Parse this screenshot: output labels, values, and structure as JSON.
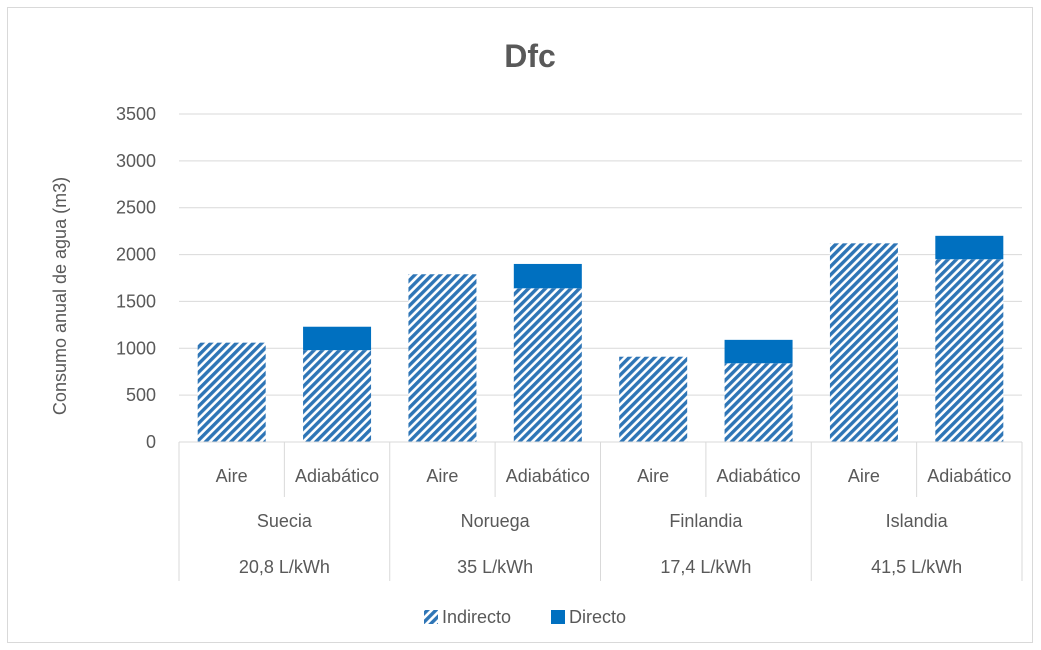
{
  "chart_data": {
    "type": "bar",
    "stacked": true,
    "title": "Dfc",
    "xlabel": "",
    "ylabel": "Consumo anual de agua (m3)",
    "ylim": [
      0,
      3500
    ],
    "yticks": [
      0,
      500,
      1000,
      1500,
      2000,
      2500,
      3000,
      3500
    ],
    "grid": true,
    "legend_position": "bottom",
    "colors": {
      "indirecto": "#2e75b6",
      "directo": "#0070c0",
      "grid": "#d9d9d9",
      "text": "#595959"
    },
    "groups": [
      {
        "country": "Suecia",
        "rate": "20,8 L/kWh",
        "categories": [
          "Aire",
          "Adiabático"
        ]
      },
      {
        "country": "Noruega",
        "rate": "35 L/kWh",
        "categories": [
          "Aire",
          "Adiabático"
        ]
      },
      {
        "country": "Finlandia",
        "rate": "17,4 L/kWh",
        "categories": [
          "Aire",
          "Adiabático"
        ]
      },
      {
        "country": "Islandia",
        "rate": "41,5 L/kWh",
        "categories": [
          "Aire",
          "Adiabático"
        ]
      }
    ],
    "series": [
      {
        "name": "Indirecto",
        "pattern": "diagonal-hatch",
        "values": [
          1060,
          980,
          1790,
          1640,
          910,
          840,
          2120,
          1950
        ]
      },
      {
        "name": "Directo",
        "pattern": "solid",
        "values": [
          0,
          250,
          0,
          260,
          0,
          250,
          0,
          250
        ]
      }
    ]
  }
}
